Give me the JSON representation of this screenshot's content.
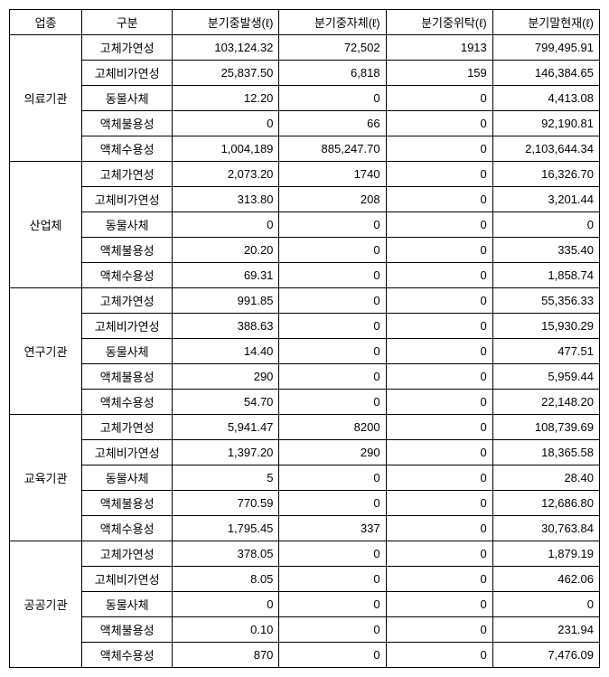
{
  "headers": {
    "category": "업종",
    "type": "구분",
    "col1": "분기중발생(ℓ)",
    "col2": "분기중자체(ℓ)",
    "col3": "분기중위탁(ℓ)",
    "col4": "분기말현재(ℓ)"
  },
  "groups": [
    {
      "name": "의료기관",
      "rows": [
        {
          "type": "고체가연성",
          "c1": "103,124.32",
          "c2": "72,502",
          "c3": "1913",
          "c4": "799,495.91"
        },
        {
          "type": "고체비가연성",
          "c1": "25,837.50",
          "c2": "6,818",
          "c3": "159",
          "c4": "146,384.65"
        },
        {
          "type": "동물사체",
          "c1": "12.20",
          "c2": "0",
          "c3": "0",
          "c4": "4,413.08"
        },
        {
          "type": "액체불용성",
          "c1": "0",
          "c2": "66",
          "c3": "0",
          "c4": "92,190.81"
        },
        {
          "type": "액체수용성",
          "c1": "1,004,189",
          "c2": "885,247.70",
          "c3": "0",
          "c4": "2,103,644.34"
        }
      ]
    },
    {
      "name": "산업체",
      "rows": [
        {
          "type": "고체가연성",
          "c1": "2,073.20",
          "c2": "1740",
          "c3": "0",
          "c4": "16,326.70"
        },
        {
          "type": "고체비가연성",
          "c1": "313.80",
          "c2": "208",
          "c3": "0",
          "c4": "3,201.44"
        },
        {
          "type": "동물사체",
          "c1": "0",
          "c2": "0",
          "c3": "0",
          "c4": "0"
        },
        {
          "type": "액체불용성",
          "c1": "20.20",
          "c2": "0",
          "c3": "0",
          "c4": "335.40"
        },
        {
          "type": "액체수용성",
          "c1": "69.31",
          "c2": "0",
          "c3": "0",
          "c4": "1,858.74"
        }
      ]
    },
    {
      "name": "연구기관",
      "rows": [
        {
          "type": "고체가연성",
          "c1": "991.85",
          "c2": "0",
          "c3": "0",
          "c4": "55,356.33"
        },
        {
          "type": "고체비가연성",
          "c1": "388.63",
          "c2": "0",
          "c3": "0",
          "c4": "15,930.29"
        },
        {
          "type": "동물사체",
          "c1": "14.40",
          "c2": "0",
          "c3": "0",
          "c4": "477.51"
        },
        {
          "type": "액체불용성",
          "c1": "290",
          "c2": "0",
          "c3": "0",
          "c4": "5,959.44"
        },
        {
          "type": "액체수용성",
          "c1": "54.70",
          "c2": "0",
          "c3": "0",
          "c4": "22,148.20"
        }
      ]
    },
    {
      "name": "교육기관",
      "rows": [
        {
          "type": "고체가연성",
          "c1": "5,941.47",
          "c2": "8200",
          "c3": "0",
          "c4": "108,739.69"
        },
        {
          "type": "고체비가연성",
          "c1": "1,397.20",
          "c2": "290",
          "c3": "0",
          "c4": "18,365.58"
        },
        {
          "type": "동물사체",
          "c1": "5",
          "c2": "0",
          "c3": "0",
          "c4": "28.40"
        },
        {
          "type": "액체불용성",
          "c1": "770.59",
          "c2": "0",
          "c3": "0",
          "c4": "12,686.80"
        },
        {
          "type": "액체수용성",
          "c1": "1,795.45",
          "c2": "337",
          "c3": "0",
          "c4": "30,763.84"
        }
      ]
    },
    {
      "name": "공공기관",
      "rows": [
        {
          "type": "고체가연성",
          "c1": "378.05",
          "c2": "0",
          "c3": "0",
          "c4": "1,879.19"
        },
        {
          "type": "고체비가연성",
          "c1": "8.05",
          "c2": "0",
          "c3": "0",
          "c4": "462.06"
        },
        {
          "type": "동물사체",
          "c1": "0",
          "c2": "0",
          "c3": "0",
          "c4": "0"
        },
        {
          "type": "액체불용성",
          "c1": "0.10",
          "c2": "0",
          "c3": "0",
          "c4": "231.94"
        },
        {
          "type": "액체수용성",
          "c1": "870",
          "c2": "0",
          "c3": "0",
          "c4": "7,476.09"
        }
      ]
    }
  ]
}
